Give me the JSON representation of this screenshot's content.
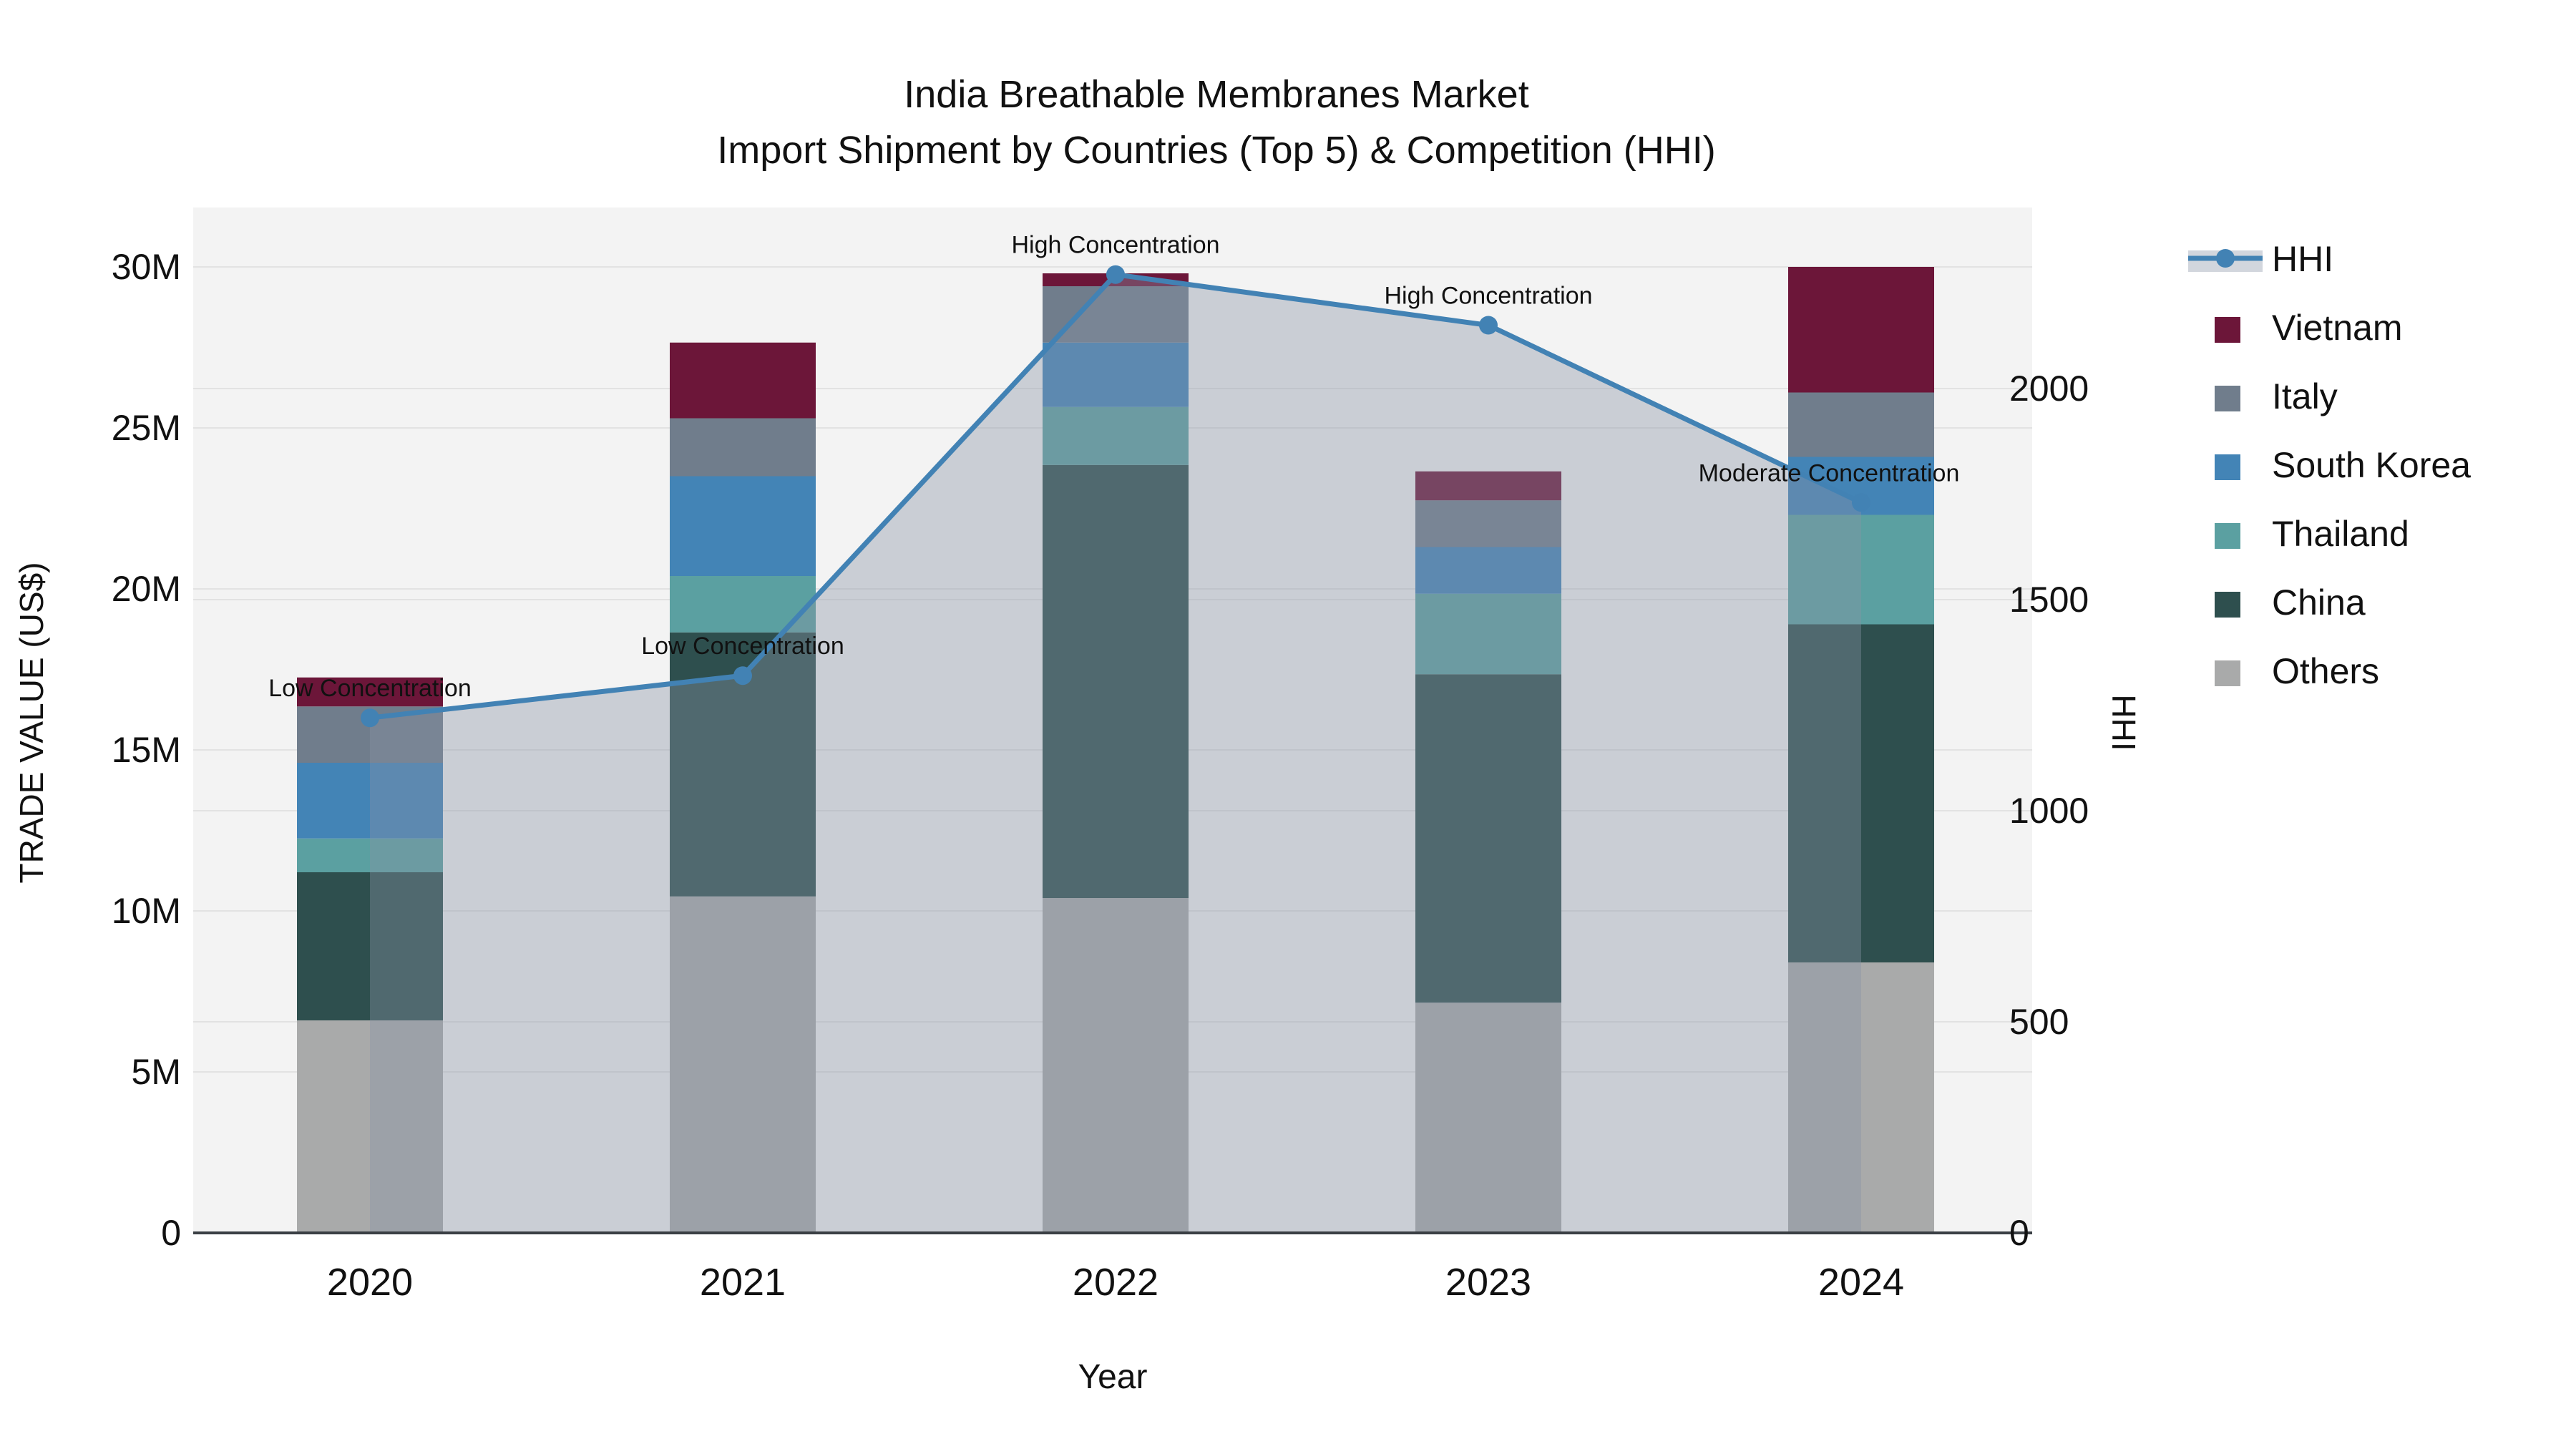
{
  "title": {
    "line1": "India Breathable Membranes Market",
    "line2": "Import Shipment by Countries (Top 5) & Competition (HHI)"
  },
  "axes": {
    "y_left": {
      "label": "TRADE VALUE (US$)",
      "tick_labels": [
        "0",
        "5M",
        "10M",
        "15M",
        "20M",
        "25M",
        "30M"
      ],
      "tick_values_millions": [
        0,
        5,
        10,
        15,
        20,
        25,
        30
      ]
    },
    "y_right": {
      "label": "HHI",
      "tick_labels": [
        "0",
        "500",
        "1000",
        "1500",
        "2000"
      ],
      "tick_values": [
        0,
        500,
        1000,
        1500,
        2000
      ]
    },
    "x": {
      "label": "Year",
      "categories": [
        "2020",
        "2021",
        "2022",
        "2023",
        "2024"
      ]
    }
  },
  "legend": {
    "items": [
      {
        "label": "HHI",
        "type": "line"
      },
      {
        "label": "Vietnam",
        "type": "swatch"
      },
      {
        "label": "Italy",
        "type": "swatch"
      },
      {
        "label": "South Korea",
        "type": "swatch"
      },
      {
        "label": "Thailand",
        "type": "swatch"
      },
      {
        "label": "China",
        "type": "swatch"
      },
      {
        "label": "Others",
        "type": "swatch"
      }
    ]
  },
  "colors": {
    "Vietnam": "#6c1639",
    "Italy": "#707d8c",
    "South Korea": "#4384b6",
    "Thailand": "#5ba0a1",
    "China": "#2e4f4e",
    "Others": "#a9aaaa",
    "hhi_line": "#4282b4",
    "area_fill": "rgba(136,148,166,0.38)",
    "plot_bg": "#f3f3f3",
    "grid": "#e2e2e2",
    "axis_line": "#3a3f44",
    "annotation_text": "#000000"
  },
  "chart_data": {
    "type": "bar",
    "subtype": "stacked-bars-with-line",
    "categories": [
      "2020",
      "2021",
      "2022",
      "2023",
      "2024"
    ],
    "unit": "millions USD",
    "stack_order_bottom_to_top": [
      "Others",
      "China",
      "Thailand",
      "South Korea",
      "Italy",
      "Vietnam"
    ],
    "series": [
      {
        "name": "Others",
        "values": [
          6.6,
          10.45,
          10.4,
          7.15,
          8.4
        ]
      },
      {
        "name": "China",
        "values": [
          4.6,
          8.2,
          13.45,
          10.2,
          10.5
        ]
      },
      {
        "name": "Thailand",
        "values": [
          1.05,
          1.75,
          1.8,
          2.5,
          3.4
        ]
      },
      {
        "name": "South Korea",
        "values": [
          2.35,
          3.1,
          2.0,
          1.45,
          1.8
        ]
      },
      {
        "name": "Italy",
        "values": [
          1.75,
          1.8,
          1.75,
          1.45,
          2.0
        ]
      },
      {
        "name": "Vietnam",
        "values": [
          0.9,
          2.35,
          0.4,
          0.9,
          3.9
        ]
      }
    ],
    "bar_totals_millions": [
      17.25,
      27.65,
      29.8,
      23.65,
      30.0
    ],
    "line_series": {
      "name": "HHI",
      "axis": "right",
      "values": [
        1220,
        1320,
        2270,
        2150,
        1730
      ],
      "has_area_fill": true,
      "markers": true
    },
    "annotations": [
      {
        "category": "2020",
        "text": "Low Concentration"
      },
      {
        "category": "2021",
        "text": "Low Concentration"
      },
      {
        "category": "2022",
        "text": "High Concentration"
      },
      {
        "category": "2023",
        "text": "High Concentration"
      },
      {
        "category": "2024",
        "text": "Moderate Concentration"
      }
    ],
    "ylim_left_millions": [
      0,
      31
    ],
    "ylim_right_hhi": [
      0,
      2400
    ],
    "grid": true,
    "legend_position": "right"
  }
}
